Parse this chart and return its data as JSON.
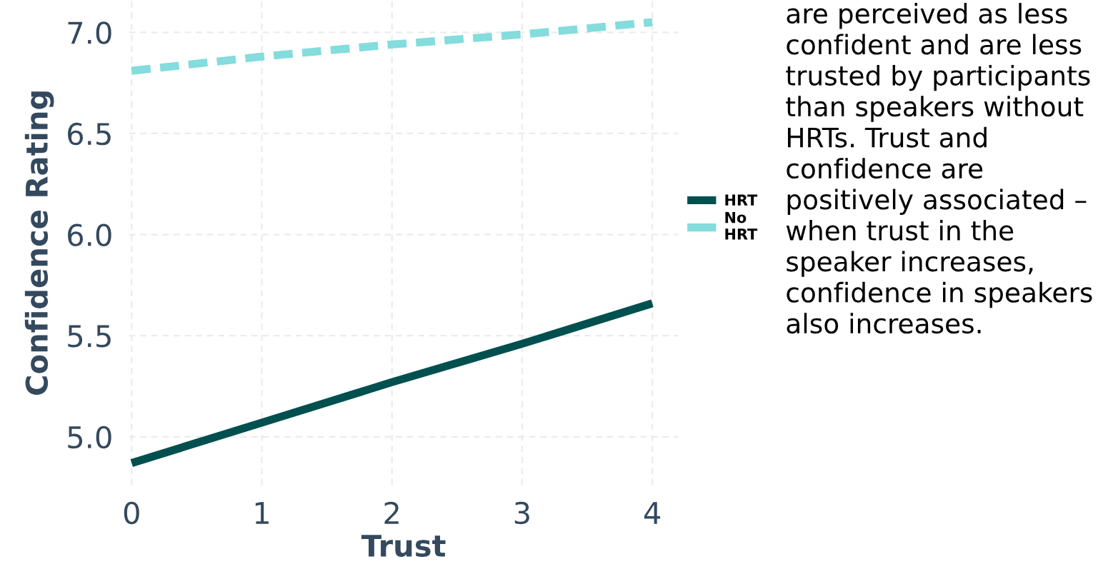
{
  "chart_data": {
    "type": "line",
    "xlabel": "Trust",
    "ylabel": "Confidence Rating",
    "x": [
      0,
      1,
      2,
      3,
      4
    ],
    "series": [
      {
        "name": "HRT",
        "color": "#00504f",
        "values": [
          4.87,
          5.07,
          5.27,
          5.46,
          5.66
        ],
        "line_style": "solid"
      },
      {
        "name": "No HRT",
        "color": "#84dcdc",
        "values": [
          6.81,
          6.88,
          6.94,
          6.99,
          7.05
        ],
        "line_style": "dashed"
      }
    ],
    "xlim": [
      -0.02,
      4.2
    ],
    "ylim": [
      4.76,
      7.16
    ],
    "xticks": [
      0,
      1,
      2,
      3,
      4
    ],
    "yticks": [
      {
        "value": 5,
        "label": "5.0"
      },
      {
        "value": 5.5,
        "label": "5.5"
      },
      {
        "value": 6,
        "label": "6.0"
      },
      {
        "value": 6.5,
        "label": "6.5"
      },
      {
        "value": 7,
        "label": "7.0"
      }
    ],
    "grid": true,
    "legend": "right",
    "marker": "none",
    "annotations": [
      "are perceived as less confident and are less trusted by participants than speakers without HRTs. Trust and confidence are positively associated – when trust in the speaker increases, confidence in speakers also increases."
    ]
  }
}
